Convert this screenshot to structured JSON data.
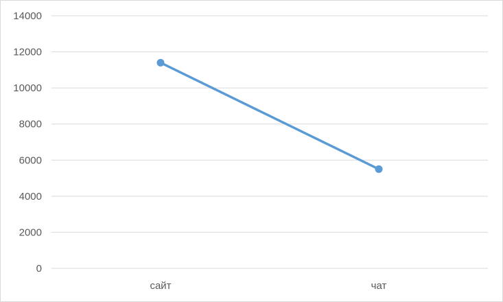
{
  "chart_data": {
    "type": "line",
    "title": "",
    "xlabel": "",
    "ylabel": "",
    "categories": [
      "сайт",
      "чат"
    ],
    "series": [
      {
        "values": [
          11400,
          5500
        ],
        "color": "#5b9bd5"
      }
    ],
    "ylim": [
      0,
      14000
    ],
    "yticks": [
      0,
      2000,
      4000,
      6000,
      8000,
      10000,
      12000,
      14000
    ],
    "grid": true,
    "legend": "none",
    "markers": true
  }
}
